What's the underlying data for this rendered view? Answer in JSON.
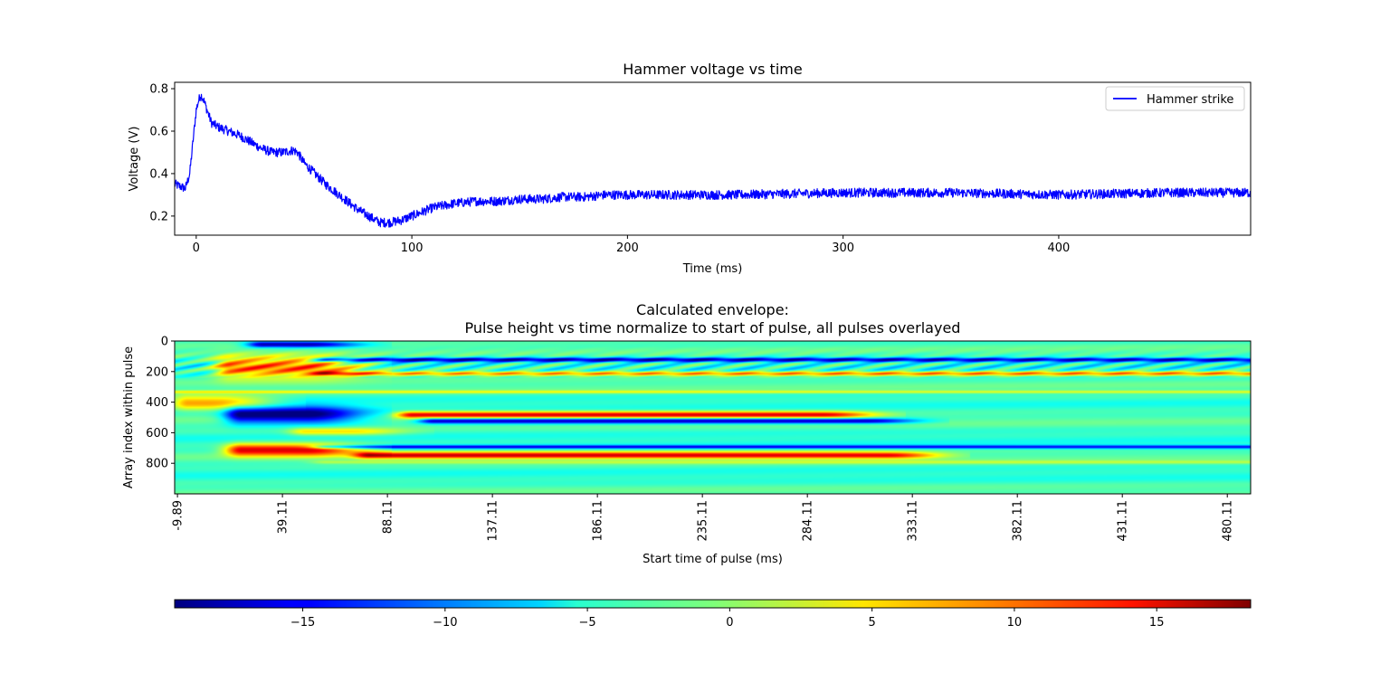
{
  "chart_data": [
    {
      "type": "line",
      "title": "Hammer voltage vs time",
      "xlabel": "Time (ms)",
      "ylabel": "Voltage (V)",
      "xlim": [
        -10,
        489
      ],
      "ylim": [
        0.11,
        0.83
      ],
      "xticks": [
        0,
        100,
        200,
        300,
        400
      ],
      "xtick_labels": [
        "0",
        "100",
        "200",
        "300",
        "400"
      ],
      "yticks": [
        0.2,
        0.4,
        0.6,
        0.8
      ],
      "ytick_labels": [
        "0.2",
        "0.4",
        "0.6",
        "0.8"
      ],
      "legend": "top-right",
      "series": [
        {
          "name": "Hammer strike",
          "color": "#0000ff",
          "noise_amplitude": 0.022,
          "x": [
            -10,
            -5,
            -3,
            -1,
            0,
            1,
            2,
            3,
            5,
            7,
            10,
            15,
            20,
            25,
            30,
            35,
            40,
            45,
            47,
            50,
            55,
            60,
            65,
            70,
            75,
            80,
            85,
            90,
            95,
            100,
            110,
            120,
            130,
            140,
            150,
            160,
            170,
            180,
            190,
            200,
            250,
            300,
            350,
            400,
            450,
            489
          ],
          "y": [
            0.35,
            0.33,
            0.4,
            0.6,
            0.7,
            0.74,
            0.77,
            0.76,
            0.7,
            0.64,
            0.62,
            0.6,
            0.58,
            0.55,
            0.52,
            0.5,
            0.5,
            0.51,
            0.5,
            0.45,
            0.4,
            0.35,
            0.31,
            0.27,
            0.23,
            0.2,
            0.17,
            0.17,
            0.18,
            0.2,
            0.24,
            0.26,
            0.27,
            0.27,
            0.28,
            0.28,
            0.29,
            0.29,
            0.3,
            0.3,
            0.3,
            0.31,
            0.31,
            0.3,
            0.31,
            0.31
          ]
        }
      ]
    },
    {
      "type": "heatmap",
      "title": "Calculated envelope:\nPulse height vs time normalize to start of pulse, all pulses overlayed",
      "title_lines": [
        "Calculated envelope:",
        "Pulse height vs time normalize to start of pulse, all pulses overlayed"
      ],
      "xlabel": "Start time of pulse (ms)",
      "ylabel": "Array index within pulse",
      "xlim": [
        -11.2,
        491
      ],
      "ylim": [
        1000,
        0
      ],
      "xticks": [
        -9.89,
        39.11,
        88.11,
        137.11,
        186.11,
        235.11,
        284.11,
        333.11,
        382.11,
        431.11,
        480.11
      ],
      "xtick_labels": [
        "-9.89",
        "39.11",
        "88.11",
        "137.11",
        "186.11",
        "235.11",
        "284.11",
        "333.11",
        "382.11",
        "431.11",
        "480.11"
      ],
      "yticks": [
        0,
        200,
        400,
        600,
        800
      ],
      "ytick_labels": [
        "0",
        "200",
        "400",
        "600",
        "800"
      ],
      "colormap": "jet",
      "background_value": -3,
      "bands": [
        {
          "y_center": 480,
          "width": 22,
          "x_start": 100,
          "x_end": 290,
          "value": 17
        },
        {
          "y_center": 520,
          "width": 18,
          "x_start": 110,
          "x_end": 310,
          "value": -15
        },
        {
          "y_center": 590,
          "width": 25,
          "x_start": 50,
          "x_end": 70,
          "value": 8
        },
        {
          "y_center": 690,
          "width": 12,
          "x_start": 60,
          "x_end": 500,
          "value": -12
        },
        {
          "y_center": 745,
          "width": 22,
          "x_start": 80,
          "x_end": 320,
          "value": 17
        },
        {
          "y_center": 790,
          "width": 12,
          "x_start": 60,
          "x_end": 500,
          "value": 4
        },
        {
          "y_center": 330,
          "width": 10,
          "x_start": -10,
          "x_end": 490,
          "value": 6
        },
        {
          "y_center": 120,
          "width": 14,
          "x_start": 60,
          "x_end": 490,
          "value": -14
        },
        {
          "y_center": 210,
          "width": 14,
          "x_start": 60,
          "x_end": 490,
          "value": 12
        },
        {
          "y_center": 400,
          "width": 45,
          "x_start": -5,
          "x_end": 10,
          "value": 12
        },
        {
          "y_center": 480,
          "width": 55,
          "x_start": 20,
          "x_end": 50,
          "value": -18
        },
        {
          "y_center": 710,
          "width": 40,
          "x_start": 20,
          "x_end": 50,
          "value": 18
        },
        {
          "y_center": 170,
          "width": 70,
          "x_start": 15,
          "x_end": 50,
          "value": 14
        },
        {
          "y_center": 20,
          "width": 20,
          "x_start": 30,
          "x_end": 50,
          "value": -16
        }
      ],
      "colorbar": {
        "orientation": "horizontal",
        "range": [
          -19.5,
          18.3
        ],
        "ticks": [
          -15,
          -10,
          -5,
          0,
          5,
          10,
          15
        ],
        "tick_labels": [
          "−15",
          "−10",
          "−5",
          "0",
          "5",
          "10",
          "15"
        ]
      }
    }
  ]
}
